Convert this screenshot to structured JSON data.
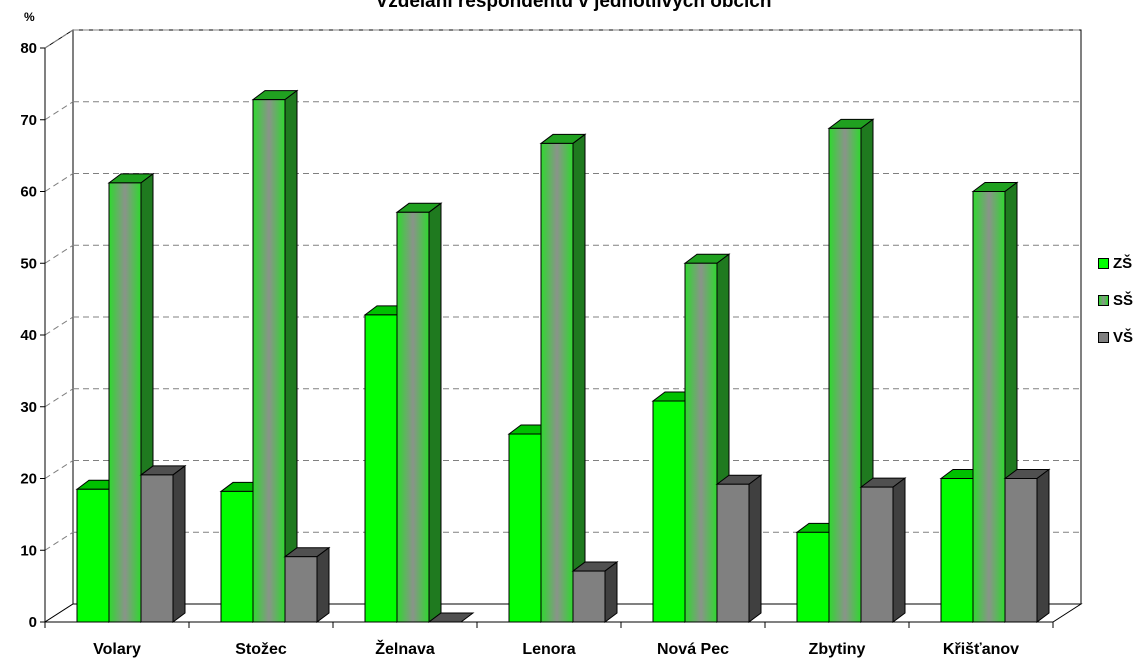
{
  "chart_data": {
    "type": "bar",
    "title": "Vzdělání respondentů v jednotlivých obcích",
    "ylabel": "%",
    "xlabel": "",
    "ylim": [
      0,
      80
    ],
    "yticks": [
      0,
      10,
      20,
      30,
      40,
      50,
      60,
      70,
      80
    ],
    "grid": true,
    "three_d": true,
    "legend_position": "right",
    "categories": [
      "Volary",
      "Stožec",
      "Želnava",
      "Lenora",
      "Nová Pec",
      "Zbytiny",
      "Křišťanov"
    ],
    "series": [
      {
        "name": "ZŠ",
        "values": [
          18.5,
          18.2,
          42.8,
          26.2,
          30.8,
          12.5,
          20.0
        ],
        "color": "#00ff00"
      },
      {
        "name": "SŠ",
        "values": [
          61.2,
          72.8,
          57.1,
          66.7,
          50.0,
          68.8,
          60.0
        ],
        "color": "#40c040"
      },
      {
        "name": "VŠ",
        "values": [
          20.5,
          9.1,
          0.0,
          7.1,
          19.2,
          18.8,
          20.0
        ],
        "color": "#808080"
      }
    ]
  }
}
